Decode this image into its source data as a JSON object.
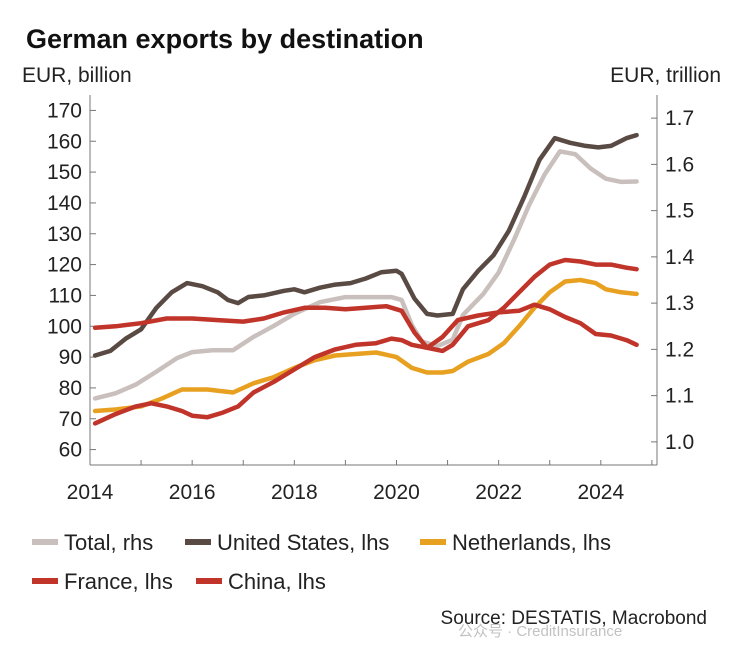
{
  "title": "German exports by destination",
  "ylabel_left": "EUR, billion",
  "ylabel_right": "EUR, trillion",
  "source": "Source: DESTATIS, Macrobond",
  "watermark": "公众号 · CreditInsurance",
  "chart_data": {
    "type": "line",
    "title": "German exports by destination",
    "ylabel_left": "EUR, billion",
    "ylabel_right": "EUR, trillion",
    "xlim": [
      2014,
      2025.1
    ],
    "ylim_left": [
      55,
      175
    ],
    "ylim_right": [
      0.95,
      1.75
    ],
    "x_ticks": [
      2014,
      2016,
      2018,
      2020,
      2022,
      2024
    ],
    "y_ticks_left": [
      60,
      70,
      80,
      90,
      100,
      110,
      120,
      130,
      140,
      150,
      160,
      170
    ],
    "y_ticks_right": [
      "1.0",
      "1.1",
      "1.2",
      "1.3",
      "1.4",
      "1.5",
      "1.6",
      "1.7"
    ],
    "grid": false,
    "legend_position": "bottom",
    "series": [
      {
        "name": "Total, rhs",
        "axis": "right",
        "color": "#c9c0bd",
        "points": [
          [
            2014.1,
            1.094
          ],
          [
            2014.5,
            1.105
          ],
          [
            2014.9,
            1.124
          ],
          [
            2015.3,
            1.152
          ],
          [
            2015.7,
            1.181
          ],
          [
            2016.0,
            1.194
          ],
          [
            2016.4,
            1.198
          ],
          [
            2016.8,
            1.198
          ],
          [
            2017.2,
            1.227
          ],
          [
            2017.6,
            1.251
          ],
          [
            2018.0,
            1.277
          ],
          [
            2018.5,
            1.302
          ],
          [
            2019.0,
            1.313
          ],
          [
            2019.5,
            1.313
          ],
          [
            2019.9,
            1.313
          ],
          [
            2020.1,
            1.307
          ],
          [
            2020.3,
            1.253
          ],
          [
            2020.5,
            1.217
          ],
          [
            2020.8,
            1.207
          ],
          [
            2021.1,
            1.221
          ],
          [
            2021.3,
            1.274
          ],
          [
            2021.7,
            1.32
          ],
          [
            2022.0,
            1.366
          ],
          [
            2022.3,
            1.437
          ],
          [
            2022.6,
            1.513
          ],
          [
            2022.9,
            1.578
          ],
          [
            2023.2,
            1.628
          ],
          [
            2023.5,
            1.622
          ],
          [
            2023.8,
            1.591
          ],
          [
            2024.1,
            1.569
          ],
          [
            2024.4,
            1.562
          ],
          [
            2024.7,
            1.563
          ]
        ]
      },
      {
        "name": "United States, lhs",
        "axis": "left",
        "color": "#5a4a44",
        "points": [
          [
            2014.1,
            90.5
          ],
          [
            2014.4,
            92
          ],
          [
            2014.7,
            96
          ],
          [
            2015.0,
            99
          ],
          [
            2015.3,
            106
          ],
          [
            2015.6,
            111
          ],
          [
            2015.9,
            114
          ],
          [
            2016.2,
            113
          ],
          [
            2016.5,
            111
          ],
          [
            2016.7,
            108.5
          ],
          [
            2016.9,
            107.5
          ],
          [
            2017.1,
            109.5
          ],
          [
            2017.4,
            110
          ],
          [
            2017.8,
            111.5
          ],
          [
            2018.0,
            112
          ],
          [
            2018.2,
            111
          ],
          [
            2018.5,
            112.5
          ],
          [
            2018.8,
            113.5
          ],
          [
            2019.1,
            114
          ],
          [
            2019.4,
            115.5
          ],
          [
            2019.7,
            117.5
          ],
          [
            2020.0,
            118
          ],
          [
            2020.1,
            117
          ],
          [
            2020.35,
            109
          ],
          [
            2020.6,
            104
          ],
          [
            2020.8,
            103.5
          ],
          [
            2021.1,
            104
          ],
          [
            2021.3,
            112
          ],
          [
            2021.6,
            118
          ],
          [
            2021.9,
            123
          ],
          [
            2022.2,
            131
          ],
          [
            2022.5,
            142
          ],
          [
            2022.8,
            154
          ],
          [
            2023.1,
            161
          ],
          [
            2023.4,
            159.5
          ],
          [
            2023.7,
            158.5
          ],
          [
            2023.95,
            158
          ],
          [
            2024.2,
            158.5
          ],
          [
            2024.5,
            161
          ],
          [
            2024.7,
            162
          ]
        ]
      },
      {
        "name": "Netherlands, lhs",
        "axis": "left",
        "color": "#e8a020",
        "points": [
          [
            2014.1,
            72.5
          ],
          [
            2014.5,
            73
          ],
          [
            2015.0,
            74
          ],
          [
            2015.4,
            76.5
          ],
          [
            2015.8,
            79.5
          ],
          [
            2016.3,
            79.5
          ],
          [
            2016.8,
            78.5
          ],
          [
            2017.2,
            81.5
          ],
          [
            2017.6,
            83.5
          ],
          [
            2018.0,
            86.5
          ],
          [
            2018.4,
            89
          ],
          [
            2018.8,
            90.5
          ],
          [
            2019.2,
            91
          ],
          [
            2019.6,
            91.5
          ],
          [
            2020.0,
            90
          ],
          [
            2020.3,
            86.5
          ],
          [
            2020.6,
            85
          ],
          [
            2020.9,
            85
          ],
          [
            2021.1,
            85.5
          ],
          [
            2021.4,
            88.5
          ],
          [
            2021.8,
            91
          ],
          [
            2022.1,
            94.5
          ],
          [
            2022.4,
            100
          ],
          [
            2022.7,
            106
          ],
          [
            2023.0,
            111
          ],
          [
            2023.3,
            114.5
          ],
          [
            2023.6,
            115
          ],
          [
            2023.9,
            114
          ],
          [
            2024.1,
            112
          ],
          [
            2024.4,
            111
          ],
          [
            2024.7,
            110.5
          ]
        ]
      },
      {
        "name": "France, lhs",
        "axis": "left",
        "color": "#c0342a",
        "points": [
          [
            2014.1,
            99.5
          ],
          [
            2014.5,
            100
          ],
          [
            2015.0,
            101
          ],
          [
            2015.5,
            102.5
          ],
          [
            2016.0,
            102.5
          ],
          [
            2016.5,
            102
          ],
          [
            2017.0,
            101.5
          ],
          [
            2017.4,
            102.5
          ],
          [
            2017.8,
            104.5
          ],
          [
            2018.2,
            106
          ],
          [
            2018.6,
            106
          ],
          [
            2019.0,
            105.5
          ],
          [
            2019.4,
            106
          ],
          [
            2019.8,
            106.5
          ],
          [
            2020.1,
            105
          ],
          [
            2020.35,
            98
          ],
          [
            2020.6,
            93
          ],
          [
            2020.9,
            92
          ],
          [
            2021.1,
            94
          ],
          [
            2021.4,
            100
          ],
          [
            2021.8,
            102
          ],
          [
            2022.1,
            106
          ],
          [
            2022.4,
            111
          ],
          [
            2022.7,
            116
          ],
          [
            2023.0,
            120
          ],
          [
            2023.3,
            121.5
          ],
          [
            2023.6,
            121
          ],
          [
            2023.9,
            120
          ],
          [
            2024.2,
            120
          ],
          [
            2024.5,
            119
          ],
          [
            2024.7,
            118.5
          ]
        ]
      },
      {
        "name": "China, lhs",
        "axis": "left",
        "color": "#c0342a",
        "points": [
          [
            2014.1,
            68.5
          ],
          [
            2014.5,
            71.5
          ],
          [
            2014.9,
            74
          ],
          [
            2015.2,
            75
          ],
          [
            2015.5,
            74
          ],
          [
            2015.8,
            72.5
          ],
          [
            2016.0,
            71
          ],
          [
            2016.3,
            70.5
          ],
          [
            2016.6,
            72
          ],
          [
            2016.9,
            74
          ],
          [
            2017.2,
            78.5
          ],
          [
            2017.6,
            82
          ],
          [
            2018.0,
            86
          ],
          [
            2018.4,
            90
          ],
          [
            2018.8,
            92.5
          ],
          [
            2019.2,
            94
          ],
          [
            2019.6,
            94.5
          ],
          [
            2019.9,
            96
          ],
          [
            2020.1,
            95.5
          ],
          [
            2020.3,
            94
          ],
          [
            2020.6,
            93
          ],
          [
            2020.9,
            96.5
          ],
          [
            2021.2,
            102
          ],
          [
            2021.6,
            103.5
          ],
          [
            2022.0,
            104.5
          ],
          [
            2022.4,
            105
          ],
          [
            2022.7,
            107
          ],
          [
            2023.0,
            105.5
          ],
          [
            2023.3,
            103
          ],
          [
            2023.6,
            101
          ],
          [
            2023.9,
            97.5
          ],
          [
            2024.2,
            97
          ],
          [
            2024.5,
            95.5
          ],
          [
            2024.7,
            94
          ]
        ]
      }
    ]
  }
}
